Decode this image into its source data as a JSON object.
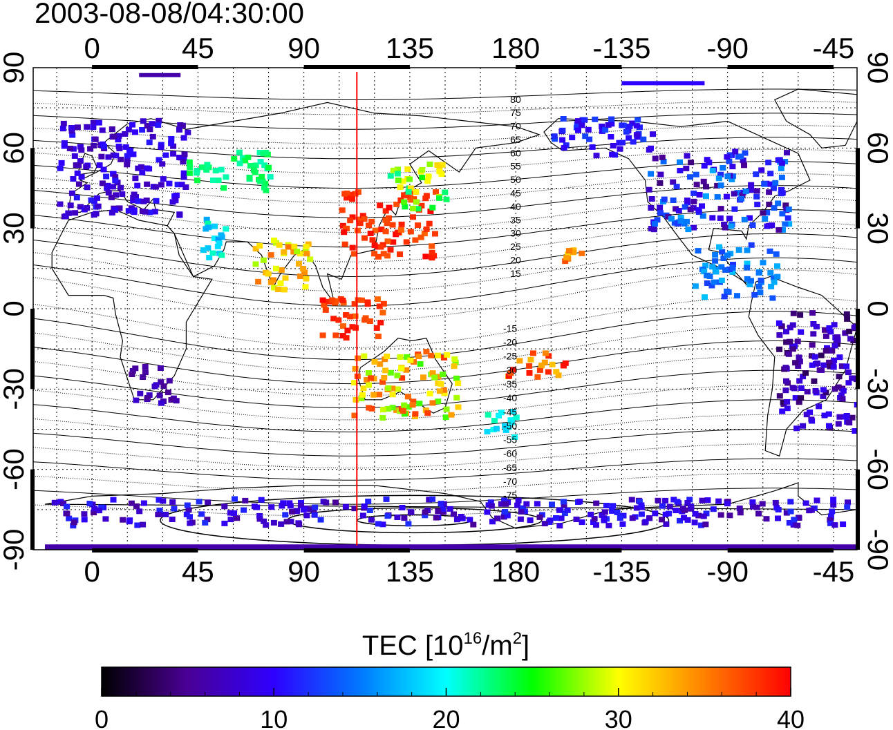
{
  "timestamp": "2003-08-08/04:30:00",
  "map": {
    "x_tick_labels": [
      "0",
      "45",
      "90",
      "135",
      "180",
      "-135",
      "-90",
      "-45"
    ],
    "y_tick_labels_left": [
      "90",
      "60",
      "30",
      "0",
      "-30",
      "-60",
      "-90"
    ],
    "y_tick_labels_right": [
      "90",
      "60",
      "30",
      "0",
      "-30",
      "-60",
      "-90"
    ],
    "longitude_range": [
      -25,
      325
    ],
    "latitude_range": [
      -90,
      90
    ],
    "grid": "on",
    "grid_step_degrees": 15,
    "subsolar_meridian_longitude": 112.5,
    "contour_labels_north": [
      "80",
      "75",
      "70",
      "65",
      "60",
      "55",
      "50",
      "45",
      "40",
      "35",
      "30",
      "25",
      "20",
      "15"
    ],
    "contour_labels_south": [
      "-15",
      "-20",
      "-25",
      "-30",
      "-35",
      "-40",
      "-45",
      "-50",
      "-55",
      "-60",
      "-65",
      "-70",
      "-75"
    ]
  },
  "colorbar": {
    "title_prefix": "TEC  [10",
    "title_exp1": "16",
    "title_mid": "/m",
    "title_exp2": "2",
    "title_suffix": "]",
    "min": 0,
    "max": 40,
    "tick_labels": [
      "0",
      "10",
      "20",
      "30",
      "40"
    ],
    "stops": [
      "#000000",
      "#4a0096",
      "#2e00ff",
      "#0078ff",
      "#00ffff",
      "#00ff00",
      "#ffff00",
      "#ff8000",
      "#ff0000"
    ]
  },
  "tec_regions": [
    {
      "name": "europe",
      "lon": [
        -15,
        40
      ],
      "lat": [
        35,
        72
      ],
      "tec": [
        6,
        11
      ]
    },
    {
      "name": "russia",
      "lon": [
        40,
        75
      ],
      "lat": [
        45,
        60
      ],
      "tec": [
        21,
        24
      ]
    },
    {
      "name": "middle-east",
      "lon": [
        45,
        60
      ],
      "lat": [
        20,
        35
      ],
      "tec": [
        16,
        22
      ]
    },
    {
      "name": "india",
      "lon": [
        68,
        92
      ],
      "lat": [
        8,
        28
      ],
      "tec": [
        28,
        36
      ]
    },
    {
      "name": "east-asia",
      "lon": [
        105,
        145
      ],
      "lat": [
        20,
        45
      ],
      "tec": [
        36,
        40
      ]
    },
    {
      "name": "japan-north",
      "lon": [
        125,
        150
      ],
      "lat": [
        38,
        55
      ],
      "tec": [
        22,
        32
      ]
    },
    {
      "name": "indonesia",
      "lon": [
        95,
        125
      ],
      "lat": [
        -10,
        5
      ],
      "tec": [
        36,
        40
      ]
    },
    {
      "name": "australia",
      "lon": [
        110,
        155
      ],
      "lat": [
        -40,
        -15
      ],
      "tec": [
        26,
        38
      ]
    },
    {
      "name": "new-zealand",
      "lon": [
        165,
        180
      ],
      "lat": [
        -47,
        -35
      ],
      "tec": [
        18,
        22
      ]
    },
    {
      "name": "pacific-south",
      "lon": [
        175,
        200
      ],
      "lat": [
        -25,
        -15
      ],
      "tec": [
        32,
        40
      ]
    },
    {
      "name": "hawaii",
      "lon": [
        195,
        210
      ],
      "lat": [
        18,
        25
      ],
      "tec": [
        30,
        38
      ]
    },
    {
      "name": "alaska",
      "lon": [
        195,
        240
      ],
      "lat": [
        58,
        72
      ],
      "tec": [
        8,
        13
      ]
    },
    {
      "name": "north-america",
      "lon": [
        235,
        295
      ],
      "lat": [
        30,
        60
      ],
      "tec": [
        4,
        17
      ]
    },
    {
      "name": "central-america",
      "lon": [
        255,
        290
      ],
      "lat": [
        5,
        25
      ],
      "tec": [
        12,
        18
      ]
    },
    {
      "name": "south-america",
      "lon": [
        290,
        325
      ],
      "lat": [
        -45,
        0
      ],
      "tec": [
        3,
        10
      ]
    },
    {
      "name": "africa-south",
      "lon": [
        15,
        35
      ],
      "lat": [
        -35,
        -20
      ],
      "tec": [
        5,
        8
      ]
    },
    {
      "name": "antarctic-coast",
      "lon": [
        -20,
        320
      ],
      "lat": [
        -80,
        -70
      ],
      "tec": [
        5,
        12
      ]
    }
  ]
}
